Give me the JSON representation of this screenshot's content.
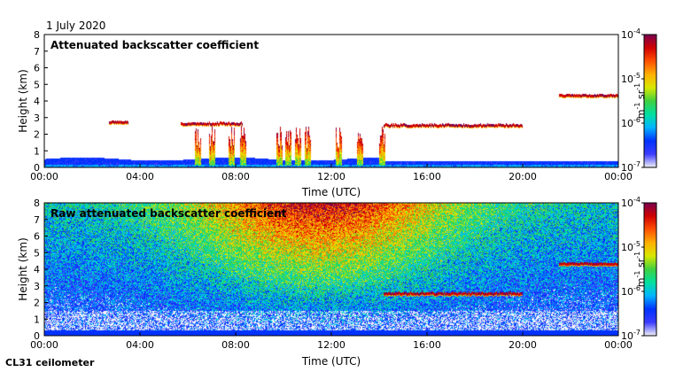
{
  "date_label": "1 July 2020",
  "footer_label": "CL31 ceilometer",
  "chart_data": [
    {
      "type": "heatmap",
      "title": "Attenuated backscatter coefficient",
      "xlabel": "Time (UTC)",
      "ylabel": "Height (km)",
      "xlim": [
        "00:00",
        "24:00"
      ],
      "ylim": [
        0,
        8
      ],
      "x_ticks": [
        "00:00",
        "04:00",
        "08:00",
        "12:00",
        "16:00",
        "20:00",
        "00:00"
      ],
      "y_ticks": [
        "0",
        "1",
        "2",
        "3",
        "4",
        "5",
        "6",
        "7",
        "8"
      ],
      "colorbar": {
        "scale": "log",
        "range": [
          1e-07,
          0.0001
        ],
        "tick_labels": [
          [
            "10",
            "-4"
          ],
          [
            "10",
            "-5"
          ],
          [
            "10",
            "-6"
          ],
          [
            "10",
            "-7"
          ]
        ],
        "unit": [
          "m",
          "-1",
          " sr",
          "-1"
        ],
        "colors": [
          "#f2f2f8",
          "#3c3cff",
          "#0032ff",
          "#00b4ff",
          "#00e0a0",
          "#40d040",
          "#d8e800",
          "#ffb000",
          "#ff5000",
          "#d00000",
          "#7a0050"
        ]
      },
      "features": {
        "surface_layer_top_km": [
          0.45,
          0.75
        ],
        "cloud_layers": [
          {
            "time_h": [
              2.7,
              3.5
            ],
            "height_km": 2.8
          },
          {
            "time_h": [
              5.7,
              8.3
            ],
            "height_km": 2.7
          },
          {
            "time_h": [
              14.2,
              20.0
            ],
            "height_km": 2.6
          },
          {
            "time_h": [
              21.5,
              24.0
            ],
            "height_km": 4.4
          }
        ],
        "convective_columns_h": [
          6.4,
          7.0,
          7.8,
          8.3,
          9.8,
          10.2,
          10.6,
          11.0,
          12.3,
          13.2,
          14.1
        ]
      }
    },
    {
      "type": "heatmap",
      "title": "Raw attenuated backscatter coefficient",
      "xlabel": "Time (UTC)",
      "ylabel": "Height (km)",
      "xlim": [
        "00:00",
        "24:00"
      ],
      "ylim": [
        0,
        8
      ],
      "x_ticks": [
        "00:00",
        "04:00",
        "08:00",
        "12:00",
        "16:00",
        "20:00",
        "00:00"
      ],
      "y_ticks": [
        "0",
        "1",
        "2",
        "3",
        "4",
        "5",
        "6",
        "7",
        "8"
      ],
      "colorbar": {
        "scale": "log",
        "range": [
          1e-07,
          0.0001
        ],
        "tick_labels": [
          [
            "10",
            "-4"
          ],
          [
            "10",
            "-5"
          ],
          [
            "10",
            "-6"
          ],
          [
            "10",
            "-7"
          ]
        ],
        "unit": [
          "m",
          "-1",
          " sr",
          "-1"
        ],
        "colors": [
          "#f2f2f8",
          "#3c3cff",
          "#0032ff",
          "#00b4ff",
          "#00e0a0",
          "#40d040",
          "#d8e800",
          "#ffb000",
          "#ff5000",
          "#d00000",
          "#7a0050"
        ]
      },
      "features": {
        "noise_dominant": true,
        "cloud_layers": [
          {
            "time_h": [
              14.2,
              20.0
            ],
            "height_km": 2.6
          },
          {
            "time_h": [
              21.5,
              24.0
            ],
            "height_km": 4.4
          }
        ]
      }
    }
  ]
}
